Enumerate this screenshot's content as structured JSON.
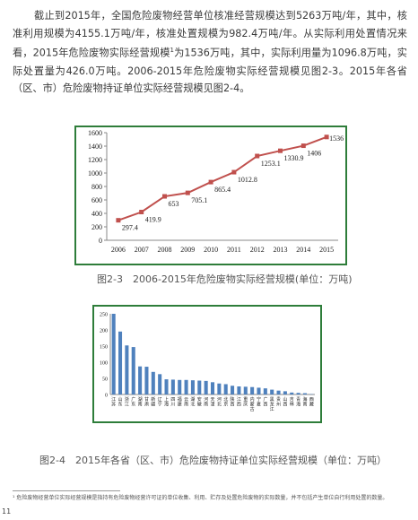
{
  "paragraph": {
    "part1": "截止到2015年，全国危险废物经营单位核准经营规模达到5263万吨/年，其中，核准利用规模为4155.1万吨/年，核准处置规模为982.4万吨/年。从实际利用处置情况来看，2015年危险废物实际经营规模",
    "sup": "1",
    "part2": "为1536万吨，其中，实际利用量为1096.8万吨，实际处置量为426.0万吨。2006-2015年危险废物实际经营规模见图2-3。2015年各省（区、市）危险废物持证单位实际经营规模见图2-4。"
  },
  "caption1": "图2-3　2006-2015年危险废物实际经营规模(单位：万吨)",
  "caption2": "图2-4　2015年各省（区、市）危险废物持证单位实际经营规模（单位：万吨）",
  "footnote": "¹ 危险废物经营单位实际经营规模是指持有危险废物经营许可证的单位收集、利用、贮存及处置危险废物的实际数量，并不包括产生单位自行利用处置的数量。",
  "page_number": "11",
  "colors": {
    "frame": "#2e7d3a",
    "line": "#c0504d",
    "bar": "#4f81bd"
  },
  "chart_data": [
    {
      "type": "line",
      "x": [
        "2006",
        "2007",
        "2008",
        "2009",
        "2010",
        "2011",
        "2012",
        "2013",
        "2014",
        "2015"
      ],
      "values": [
        297.4,
        419.9,
        653,
        705.1,
        865.4,
        1012.8,
        1253.1,
        1330.9,
        1406,
        1536
      ],
      "data_labels": [
        "297.4",
        "419.9",
        "653",
        "705.1",
        "865.4",
        "1012.8",
        "1253.1",
        "1330.9",
        "1406",
        "1536"
      ],
      "ylim": [
        0,
        1600
      ],
      "yticks": [
        0,
        200,
        400,
        600,
        800,
        1000,
        1200,
        1400,
        1600
      ],
      "grid": false,
      "color": "#c0504d"
    },
    {
      "type": "bar",
      "categories": [
        "江苏",
        "山东",
        "浙江",
        "广东",
        "湖南",
        "甘肃",
        "新疆",
        "辽宁",
        "上海",
        "四川",
        "福建",
        "云南",
        "湖北",
        "安徽",
        "河南",
        "天津",
        "河北",
        "北京",
        "陕西",
        "江西",
        "重庆",
        "内蒙古",
        "宁夏",
        "广西",
        "黑龙江",
        "贵州",
        "山西",
        "吉林",
        "青海",
        "海南",
        "西藏"
      ],
      "values": [
        250,
        195,
        152,
        147,
        87,
        86,
        70,
        63,
        47,
        46,
        45,
        45,
        44,
        43,
        42,
        38,
        34,
        32,
        27,
        25,
        24,
        23,
        21,
        19,
        15,
        12,
        10,
        6,
        5,
        4,
        1
      ],
      "ylim": [
        0,
        250
      ],
      "yticks": [
        0,
        50,
        100,
        150,
        200,
        250
      ],
      "grid": false,
      "color": "#4f81bd"
    }
  ]
}
